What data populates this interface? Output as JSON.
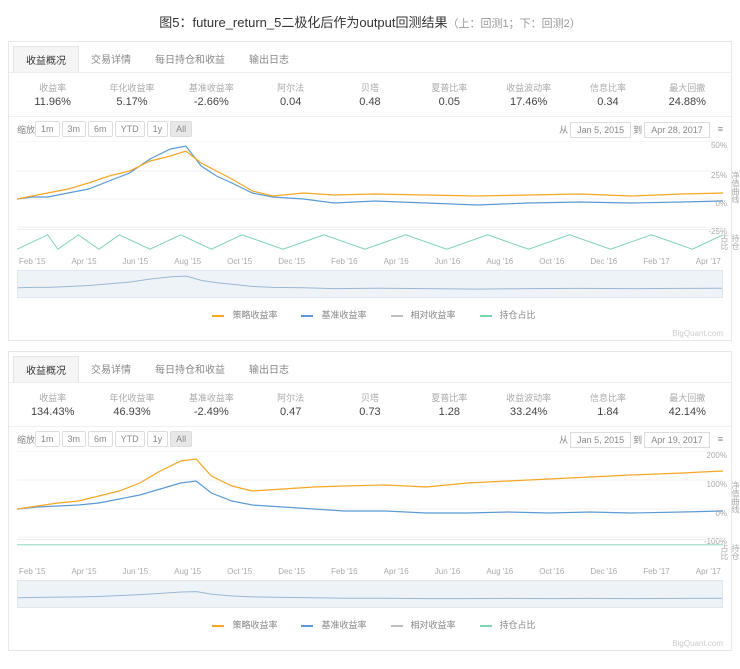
{
  "title_main": "图5：future_return_5二极化后作为output回测结果",
  "title_sub": "（上：回测1；下：回测2）",
  "tabs": [
    "收益概况",
    "交易详情",
    "每日持仓和收益",
    "输出日志"
  ],
  "stat_labels": [
    "收益率",
    "年化收益率",
    "基准收益率",
    "阿尔法",
    "贝塔",
    "夏普比率",
    "收益波动率",
    "信息比率",
    "最大回撤"
  ],
  "zoom_label": "缩放",
  "zoom_buttons": [
    "1m",
    "3m",
    "6m",
    "YTD",
    "1y",
    "All"
  ],
  "date_from_label": "从",
  "date_to_label": "到",
  "legend_items": [
    {
      "label": "策略收益率",
      "color": "#f5a623"
    },
    {
      "label": "基准收益率",
      "color": "#5b9bd5"
    },
    {
      "label": "相对收益率",
      "color": "#bfbfbf"
    },
    {
      "label": "持仓占比",
      "color": "#7fd4b0"
    }
  ],
  "brand": "BigQuant.com",
  "x_axis": [
    "Feb '15",
    "Apr '15",
    "Jun '15",
    "Aug '15",
    "Oct '15",
    "Dec '15",
    "Feb '16",
    "Apr '16",
    "Jun '16",
    "Aug '16",
    "Oct '16",
    "Dec '16",
    "Feb '17",
    "Apr '17"
  ],
  "panel1": {
    "stats": [
      "11.96%",
      "5.17%",
      "-2.66%",
      "0.04",
      "0.48",
      "0.05",
      "17.46%",
      "0.34",
      "24.88%"
    ],
    "date_from": "Jan 5, 2015",
    "date_to": "Apr 28, 2017",
    "ylim": [
      -25,
      50
    ],
    "yticks": [
      {
        "v": 50,
        "y": 0
      },
      {
        "v": 25,
        "y": 30
      },
      {
        "v": 0,
        "y": 58
      },
      {
        "v": -25,
        "y": 86
      }
    ],
    "series_strategy": {
      "color": "#f5a623",
      "pts": [
        [
          0,
          58
        ],
        [
          15,
          55
        ],
        [
          30,
          52
        ],
        [
          50,
          48
        ],
        [
          70,
          42
        ],
        [
          90,
          35
        ],
        [
          110,
          30
        ],
        [
          130,
          20
        ],
        [
          150,
          15
        ],
        [
          165,
          10
        ],
        [
          180,
          22
        ],
        [
          195,
          30
        ],
        [
          210,
          38
        ],
        [
          230,
          50
        ],
        [
          250,
          55
        ],
        [
          280,
          52
        ],
        [
          310,
          54
        ],
        [
          350,
          53
        ],
        [
          400,
          54
        ],
        [
          450,
          55
        ],
        [
          500,
          54
        ],
        [
          550,
          53
        ],
        [
          600,
          55
        ],
        [
          650,
          53
        ],
        [
          690,
          52
        ]
      ]
    },
    "series_bench": {
      "color": "#5b9bd5",
      "pts": [
        [
          0,
          58
        ],
        [
          15,
          56
        ],
        [
          30,
          56
        ],
        [
          50,
          52
        ],
        [
          70,
          48
        ],
        [
          90,
          40
        ],
        [
          110,
          32
        ],
        [
          130,
          18
        ],
        [
          150,
          8
        ],
        [
          165,
          5
        ],
        [
          180,
          25
        ],
        [
          195,
          35
        ],
        [
          210,
          42
        ],
        [
          230,
          52
        ],
        [
          250,
          56
        ],
        [
          280,
          58
        ],
        [
          310,
          62
        ],
        [
          350,
          60
        ],
        [
          400,
          62
        ],
        [
          450,
          64
        ],
        [
          500,
          62
        ],
        [
          550,
          61
        ],
        [
          600,
          62
        ],
        [
          650,
          61
        ],
        [
          690,
          60
        ]
      ]
    },
    "holdings": {
      "color": "#7fd4b0",
      "pts": [
        [
          0,
          20
        ],
        [
          30,
          5
        ],
        [
          40,
          20
        ],
        [
          60,
          5
        ],
        [
          80,
          20
        ],
        [
          100,
          5
        ],
        [
          130,
          20
        ],
        [
          160,
          5
        ],
        [
          190,
          20
        ],
        [
          220,
          5
        ],
        [
          260,
          20
        ],
        [
          300,
          5
        ],
        [
          340,
          20
        ],
        [
          380,
          5
        ],
        [
          420,
          20
        ],
        [
          460,
          5
        ],
        [
          500,
          20
        ],
        [
          540,
          5
        ],
        [
          580,
          20
        ],
        [
          620,
          5
        ],
        [
          660,
          20
        ],
        [
          690,
          5
        ]
      ]
    }
  },
  "panel2": {
    "stats": [
      "134.43%",
      "46.93%",
      "-2.49%",
      "0.47",
      "0.73",
      "1.28",
      "33.24%",
      "1.84",
      "42.14%"
    ],
    "date_from": "Jan 5, 2015",
    "date_to": "Apr 19, 2017",
    "ylim": [
      -100,
      200
    ],
    "yticks": [
      {
        "v": 200,
        "y": 0
      },
      {
        "v": 100,
        "y": 29
      },
      {
        "v": 0,
        "y": 58
      },
      {
        "v": -100,
        "y": 86
      }
    ],
    "series_strategy": {
      "color": "#f5a623",
      "pts": [
        [
          0,
          58
        ],
        [
          20,
          55
        ],
        [
          40,
          52
        ],
        [
          60,
          50
        ],
        [
          80,
          45
        ],
        [
          100,
          40
        ],
        [
          120,
          32
        ],
        [
          140,
          20
        ],
        [
          160,
          10
        ],
        [
          175,
          8
        ],
        [
          190,
          25
        ],
        [
          210,
          35
        ],
        [
          230,
          40
        ],
        [
          260,
          38
        ],
        [
          290,
          36
        ],
        [
          320,
          35
        ],
        [
          360,
          34
        ],
        [
          400,
          36
        ],
        [
          440,
          32
        ],
        [
          480,
          30
        ],
        [
          520,
          28
        ],
        [
          560,
          26
        ],
        [
          600,
          24
        ],
        [
          650,
          22
        ],
        [
          690,
          20
        ]
      ]
    },
    "series_bench": {
      "color": "#5b9bd5",
      "pts": [
        [
          0,
          58
        ],
        [
          20,
          56
        ],
        [
          40,
          55
        ],
        [
          60,
          54
        ],
        [
          80,
          52
        ],
        [
          100,
          48
        ],
        [
          120,
          44
        ],
        [
          140,
          38
        ],
        [
          160,
          32
        ],
        [
          175,
          30
        ],
        [
          190,
          42
        ],
        [
          210,
          50
        ],
        [
          230,
          54
        ],
        [
          260,
          56
        ],
        [
          290,
          58
        ],
        [
          320,
          60
        ],
        [
          360,
          60
        ],
        [
          400,
          62
        ],
        [
          440,
          62
        ],
        [
          480,
          61
        ],
        [
          520,
          62
        ],
        [
          560,
          61
        ],
        [
          600,
          62
        ],
        [
          650,
          61
        ],
        [
          690,
          60
        ]
      ]
    },
    "holdings": {
      "color": "#7fd4b0",
      "pts": [
        [
          0,
          5
        ],
        [
          690,
          5
        ]
      ]
    }
  },
  "colors": {
    "grid": "#f0f0f0",
    "nav_line": "#9ab8d4"
  }
}
